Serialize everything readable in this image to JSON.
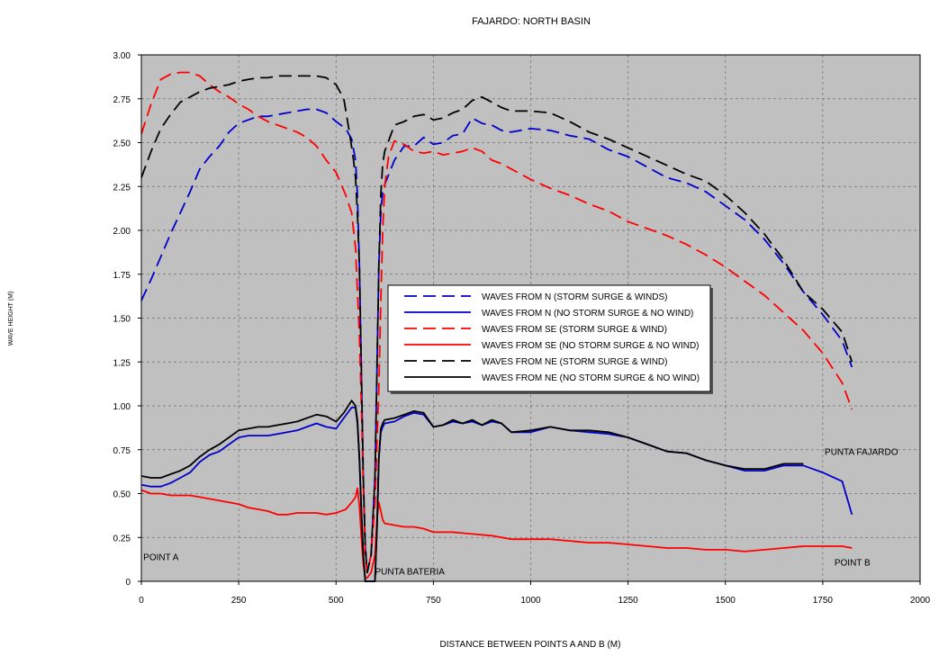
{
  "chart_data": {
    "type": "line",
    "title": "FAJARDO: NORTH BASIN",
    "xlabel": "DISTANCE BETWEEN POINTS A AND B (M)",
    "ylabel": "WAVE HEIGHT (M)",
    "xlim": [
      0,
      2000
    ],
    "ylim": [
      0,
      3.0
    ],
    "xticks": [
      0,
      250,
      500,
      750,
      1000,
      1250,
      1500,
      1750,
      2000
    ],
    "yticks": [
      0,
      0.25,
      0.5,
      0.75,
      1.0,
      1.25,
      1.5,
      1.75,
      2.0,
      2.25,
      2.5,
      2.75,
      3.0
    ],
    "xtick_labels": [
      "0",
      "250",
      "500",
      "750",
      "1000",
      "1250",
      "1500",
      "1750",
      "2000"
    ],
    "ytick_labels": [
      "0",
      "0.25",
      "0.50",
      "0.75",
      "1.00",
      "1.25",
      "1.50",
      "1.75",
      "2.00",
      "2.25",
      "2.50",
      "2.75",
      "3.00"
    ],
    "grid": true,
    "legend_position": "center",
    "plot_background": "#c0c0c0",
    "annotations": [
      {
        "text": "POINT A",
        "x": 5,
        "y": 0.14
      },
      {
        "text": "PUNTA BATERIA",
        "x": 600,
        "y": 0.06
      },
      {
        "text": "PUNTA FAJARDO",
        "x": 1755,
        "y": 0.74
      },
      {
        "text": "POINT B",
        "x": 1780,
        "y": 0.11
      }
    ],
    "series": [
      {
        "name": "WAVES FROM N (STORM SURGE & WINDS)",
        "color": "#0000cc",
        "dash": "dashed",
        "x": [
          0,
          25,
          50,
          75,
          100,
          125,
          150,
          175,
          200,
          225,
          250,
          275,
          300,
          325,
          350,
          375,
          400,
          425,
          450,
          475,
          500,
          525,
          540,
          550,
          555,
          560,
          565,
          570,
          575,
          580,
          590,
          600,
          605,
          610,
          615,
          620,
          625,
          650,
          675,
          700,
          725,
          750,
          775,
          800,
          825,
          850,
          875,
          900,
          925,
          950,
          1000,
          1050,
          1100,
          1150,
          1200,
          1250,
          1300,
          1350,
          1400,
          1450,
          1500,
          1550,
          1600,
          1650,
          1700,
          1750,
          1800,
          1825
        ],
        "y": [
          1.6,
          1.72,
          1.85,
          1.98,
          2.1,
          2.22,
          2.35,
          2.42,
          2.48,
          2.56,
          2.61,
          2.63,
          2.65,
          2.65,
          2.66,
          2.67,
          2.68,
          2.69,
          2.69,
          2.67,
          2.62,
          2.58,
          2.52,
          2.4,
          2.2,
          1.8,
          1.2,
          0.6,
          0.2,
          0.05,
          0.15,
          0.6,
          1.2,
          1.8,
          2.1,
          2.22,
          2.26,
          2.4,
          2.48,
          2.48,
          2.53,
          2.49,
          2.5,
          2.54,
          2.55,
          2.64,
          2.61,
          2.6,
          2.57,
          2.56,
          2.58,
          2.57,
          2.54,
          2.52,
          2.46,
          2.42,
          2.36,
          2.3,
          2.27,
          2.22,
          2.14,
          2.06,
          1.95,
          1.81,
          1.65,
          1.52,
          1.37,
          1.22
        ]
      },
      {
        "name": "WAVES FROM N (NO STORM SURGE & NO WIND)",
        "color": "#0000cc",
        "dash": "solid",
        "x": [
          0,
          25,
          50,
          75,
          100,
          125,
          150,
          175,
          200,
          225,
          250,
          275,
          300,
          325,
          350,
          375,
          400,
          425,
          450,
          475,
          500,
          520,
          540,
          550,
          555,
          560,
          565,
          570,
          575,
          580,
          590,
          600,
          605,
          610,
          615,
          620,
          625,
          650,
          675,
          700,
          725,
          750,
          775,
          800,
          825,
          850,
          875,
          900,
          925,
          950,
          1000,
          1050,
          1100,
          1150,
          1200,
          1250,
          1300,
          1350,
          1400,
          1450,
          1500,
          1550,
          1600,
          1650,
          1700,
          1750,
          1800,
          1825
        ],
        "y": [
          0.55,
          0.54,
          0.54,
          0.56,
          0.59,
          0.62,
          0.68,
          0.72,
          0.74,
          0.78,
          0.82,
          0.83,
          0.83,
          0.83,
          0.84,
          0.85,
          0.86,
          0.88,
          0.9,
          0.88,
          0.87,
          0.93,
          0.99,
          0.99,
          0.9,
          0.7,
          0.4,
          0.15,
          0.0,
          0.0,
          0.0,
          0.0,
          0.3,
          0.7,
          0.85,
          0.88,
          0.9,
          0.91,
          0.94,
          0.96,
          0.95,
          0.88,
          0.89,
          0.91,
          0.9,
          0.91,
          0.89,
          0.91,
          0.9,
          0.85,
          0.85,
          0.88,
          0.86,
          0.85,
          0.84,
          0.82,
          0.78,
          0.74,
          0.73,
          0.69,
          0.66,
          0.63,
          0.63,
          0.66,
          0.66,
          0.62,
          0.57,
          0.38
        ]
      },
      {
        "name": "WAVES FROM SE (STORM SURGE & WIND)",
        "color": "#ff0000",
        "dash": "dashed",
        "x": [
          0,
          25,
          50,
          75,
          100,
          125,
          150,
          175,
          200,
          225,
          250,
          275,
          300,
          325,
          350,
          375,
          400,
          425,
          450,
          475,
          500,
          525,
          540,
          550,
          560,
          565,
          570,
          575,
          580,
          590,
          600,
          610,
          615,
          620,
          625,
          635,
          650,
          675,
          700,
          725,
          750,
          775,
          800,
          825,
          850,
          875,
          900,
          925,
          950,
          1000,
          1050,
          1100,
          1150,
          1200,
          1250,
          1300,
          1350,
          1400,
          1450,
          1500,
          1550,
          1600,
          1650,
          1700,
          1750,
          1800,
          1825
        ],
        "y": [
          2.55,
          2.72,
          2.86,
          2.89,
          2.9,
          2.9,
          2.88,
          2.83,
          2.79,
          2.76,
          2.72,
          2.69,
          2.65,
          2.62,
          2.6,
          2.58,
          2.56,
          2.53,
          2.48,
          2.4,
          2.33,
          2.2,
          2.1,
          1.9,
          1.4,
          1.0,
          0.55,
          0.15,
          0.05,
          0.15,
          0.45,
          1.1,
          1.6,
          2.0,
          2.25,
          2.42,
          2.51,
          2.49,
          2.45,
          2.44,
          2.45,
          2.43,
          2.44,
          2.45,
          2.47,
          2.45,
          2.4,
          2.38,
          2.35,
          2.29,
          2.24,
          2.2,
          2.15,
          2.11,
          2.05,
          2.01,
          1.97,
          1.92,
          1.86,
          1.79,
          1.71,
          1.63,
          1.53,
          1.43,
          1.3,
          1.13,
          0.98
        ]
      },
      {
        "name": "WAVES FROM SE (NO STORM SURGE & NO WIND)",
        "color": "#ff0000",
        "dash": "solid",
        "x": [
          0,
          25,
          50,
          75,
          100,
          125,
          150,
          175,
          200,
          225,
          250,
          275,
          300,
          325,
          350,
          375,
          400,
          425,
          450,
          475,
          500,
          525,
          540,
          550,
          555,
          560,
          565,
          570,
          575,
          580,
          590,
          600,
          605,
          610,
          615,
          620,
          625,
          650,
          675,
          700,
          725,
          750,
          800,
          850,
          900,
          950,
          1000,
          1050,
          1100,
          1150,
          1200,
          1250,
          1300,
          1350,
          1400,
          1450,
          1500,
          1550,
          1600,
          1650,
          1700,
          1750,
          1800,
          1825
        ],
        "y": [
          0.52,
          0.5,
          0.5,
          0.49,
          0.49,
          0.49,
          0.48,
          0.47,
          0.46,
          0.45,
          0.44,
          0.42,
          0.41,
          0.4,
          0.38,
          0.38,
          0.39,
          0.39,
          0.39,
          0.38,
          0.39,
          0.41,
          0.45,
          0.48,
          0.53,
          0.43,
          0.25,
          0.1,
          0.02,
          0.02,
          0.05,
          0.15,
          0.35,
          0.45,
          0.4,
          0.35,
          0.33,
          0.32,
          0.31,
          0.31,
          0.3,
          0.28,
          0.28,
          0.27,
          0.26,
          0.24,
          0.24,
          0.24,
          0.23,
          0.22,
          0.22,
          0.21,
          0.2,
          0.19,
          0.19,
          0.18,
          0.18,
          0.17,
          0.18,
          0.19,
          0.2,
          0.2,
          0.2,
          0.19
        ]
      },
      {
        "name": "WAVES FROM NE (STORM SURGE & WIND)",
        "color": "#000000",
        "dash": "dashed",
        "x": [
          0,
          25,
          50,
          75,
          100,
          125,
          150,
          175,
          200,
          225,
          250,
          275,
          300,
          325,
          350,
          375,
          400,
          425,
          450,
          475,
          500,
          520,
          535,
          545,
          550,
          555,
          560,
          565,
          570,
          575,
          580,
          590,
          600,
          605,
          610,
          615,
          620,
          625,
          650,
          675,
          700,
          725,
          750,
          775,
          800,
          825,
          850,
          875,
          900,
          925,
          950,
          1000,
          1050,
          1100,
          1150,
          1200,
          1250,
          1300,
          1350,
          1400,
          1450,
          1500,
          1550,
          1600,
          1650,
          1700,
          1750,
          1800,
          1825
        ],
        "y": [
          2.3,
          2.45,
          2.58,
          2.66,
          2.73,
          2.76,
          2.79,
          2.81,
          2.82,
          2.83,
          2.85,
          2.86,
          2.87,
          2.87,
          2.88,
          2.88,
          2.88,
          2.88,
          2.88,
          2.87,
          2.83,
          2.75,
          2.55,
          2.4,
          2.3,
          2.1,
          1.8,
          1.2,
          0.6,
          0.2,
          0.05,
          0.15,
          0.6,
          1.2,
          1.8,
          2.2,
          2.38,
          2.45,
          2.6,
          2.62,
          2.65,
          2.66,
          2.63,
          2.64,
          2.67,
          2.69,
          2.74,
          2.76,
          2.73,
          2.7,
          2.68,
          2.68,
          2.67,
          2.62,
          2.56,
          2.52,
          2.47,
          2.42,
          2.37,
          2.32,
          2.28,
          2.2,
          2.1,
          1.98,
          1.83,
          1.65,
          1.55,
          1.42,
          1.25
        ]
      },
      {
        "name": "WAVES FROM NE (NO STORM SURGE & NO WIND)",
        "color": "#000000",
        "dash": "solid",
        "x": [
          0,
          25,
          50,
          75,
          100,
          125,
          150,
          175,
          200,
          225,
          250,
          275,
          300,
          325,
          350,
          375,
          400,
          425,
          450,
          475,
          500,
          520,
          540,
          550,
          555,
          560,
          565,
          570,
          575,
          580,
          590,
          600,
          605,
          610,
          615,
          620,
          625,
          650,
          675,
          700,
          725,
          750,
          775,
          800,
          825,
          850,
          875,
          900,
          925,
          950,
          1000,
          1050,
          1100,
          1150,
          1200,
          1250,
          1300,
          1350,
          1400,
          1450,
          1500,
          1550,
          1600,
          1650,
          1700
        ],
        "y": [
          0.6,
          0.59,
          0.59,
          0.61,
          0.63,
          0.66,
          0.71,
          0.75,
          0.78,
          0.82,
          0.86,
          0.87,
          0.88,
          0.88,
          0.89,
          0.9,
          0.91,
          0.93,
          0.95,
          0.94,
          0.91,
          0.96,
          1.03,
          1.0,
          0.92,
          0.7,
          0.4,
          0.15,
          0.0,
          0.0,
          0.0,
          0.0,
          0.3,
          0.7,
          0.87,
          0.9,
          0.92,
          0.93,
          0.95,
          0.97,
          0.96,
          0.88,
          0.89,
          0.92,
          0.9,
          0.92,
          0.89,
          0.92,
          0.9,
          0.85,
          0.86,
          0.88,
          0.86,
          0.86,
          0.85,
          0.82,
          0.78,
          0.74,
          0.73,
          0.69,
          0.66,
          0.64,
          0.64,
          0.67,
          0.67
        ]
      }
    ]
  }
}
